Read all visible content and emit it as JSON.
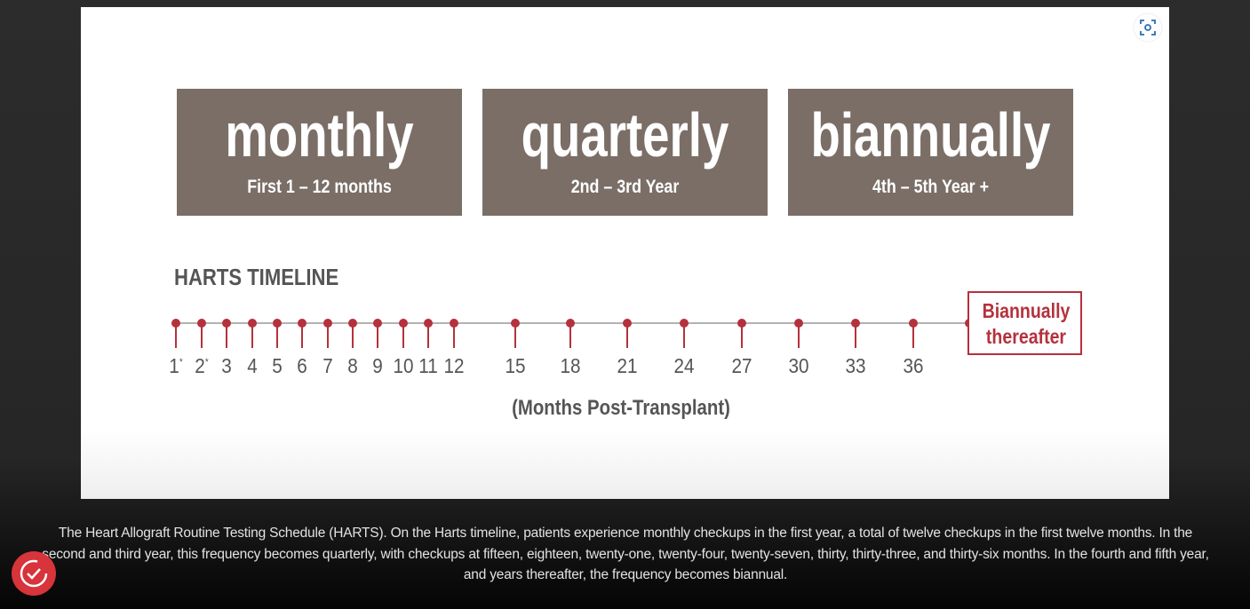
{
  "diagram": {
    "boxes": [
      {
        "title": "monthly",
        "subtitle": "First 1 – 12 months"
      },
      {
        "title": "quarterly",
        "subtitle": "2nd – 3rd Year"
      },
      {
        "title": "biannually",
        "subtitle": "4th – 5th Year +"
      }
    ],
    "timeline_title": "HARTS TIMELINE",
    "ticks": [
      {
        "label": "1",
        "note": "*"
      },
      {
        "label": "2",
        "note": "*"
      },
      {
        "label": "3"
      },
      {
        "label": "4"
      },
      {
        "label": "5"
      },
      {
        "label": "6"
      },
      {
        "label": "7"
      },
      {
        "label": "8"
      },
      {
        "label": "9"
      },
      {
        "label": "10"
      },
      {
        "label": "11"
      },
      {
        "label": "12"
      },
      {
        "label": "15"
      },
      {
        "label": "18"
      },
      {
        "label": "21"
      },
      {
        "label": "24"
      },
      {
        "label": "27"
      },
      {
        "label": "30"
      },
      {
        "label": "33"
      },
      {
        "label": "36"
      }
    ],
    "end_label": [
      "Biannually",
      "thereafter"
    ],
    "axis_label": "(Months Post-Transplant)"
  },
  "viewer": {
    "caption": "The Heart Allograft Routine Testing Schedule (HARTS). On the Harts timeline, patients experience monthly checkups in the first year, a total of twelve checkups in the first twelve months. In the second and third year, this frequency becomes quarterly, with checkups at fifteen, eighteen, twenty-one, twenty-four, twenty-seven, thirty, thirty-three, and thirty-six months. In the fourth and fifth year, and years thereafter, the frequency becomes biannual."
  }
}
